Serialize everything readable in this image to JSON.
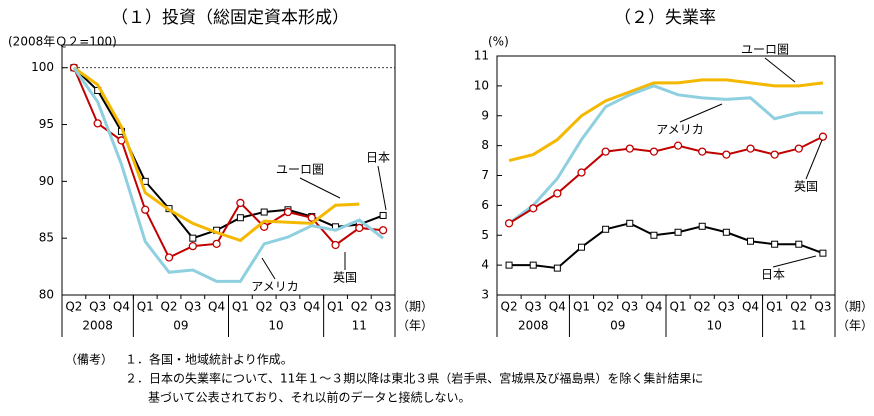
{
  "chart_data": [
    {
      "type": "line",
      "title": "（１）投資（総固定資本形成）",
      "y_label": "(2008年Ｑ２=100)",
      "categories": [
        "Q2",
        "Q3",
        "Q4",
        "Q1",
        "Q2",
        "Q3",
        "Q4",
        "Q1",
        "Q2",
        "Q3",
        "Q4",
        "Q1",
        "Q2",
        "Q3"
      ],
      "groups": [
        "2008",
        "09",
        "10",
        "11"
      ],
      "x_unit_label": "（期）",
      "group_unit_label": "（年）",
      "ylim": [
        80,
        102
      ],
      "yticks": [
        80,
        85,
        90,
        95,
        100
      ],
      "hline": 100,
      "series": [
        {
          "name": "日本",
          "color": "#000000",
          "marker": "square",
          "values": [
            100,
            98,
            94.4,
            90,
            87.6,
            85,
            85.7,
            86.8,
            87.3,
            87.5,
            86.9,
            86,
            86.2,
            87
          ]
        },
        {
          "name": "英国",
          "color": "#c00000",
          "marker": "circle",
          "values": [
            100,
            95.1,
            93.6,
            87.5,
            83.3,
            84.3,
            84.5,
            88.1,
            86,
            87.3,
            86.8,
            84.4,
            85.9,
            85.7
          ]
        },
        {
          "name": "ユーロ圏",
          "color": "#f5b800",
          "marker": null,
          "values": [
            100,
            98.5,
            94.8,
            89,
            87.5,
            86.3,
            85.5,
            84.8,
            86.5,
            86.4,
            86.3,
            87.9,
            88,
            null
          ]
        },
        {
          "name": "アメリカ",
          "color": "#8ecfe0",
          "marker": null,
          "values": [
            100,
            97,
            91.5,
            84.7,
            82,
            82.2,
            81.2,
            81.2,
            84.5,
            85.1,
            86.1,
            85.7,
            86.6,
            85
          ]
        }
      ]
    },
    {
      "type": "line",
      "title": "（２）失業率",
      "y_label": "(%)",
      "categories": [
        "Q2",
        "Q3",
        "Q4",
        "Q1",
        "Q2",
        "Q3",
        "Q4",
        "Q1",
        "Q2",
        "Q3",
        "Q4",
        "Q1",
        "Q2",
        "Q3"
      ],
      "groups": [
        "2008",
        "09",
        "10",
        "11"
      ],
      "x_unit_label": "（期）",
      "group_unit_label": "（年）",
      "ylim": [
        3,
        11
      ],
      "yticks": [
        3,
        4,
        5,
        6,
        7,
        8,
        9,
        10,
        11
      ],
      "series": [
        {
          "name": "ユーロ圏",
          "color": "#f5b800",
          "marker": null,
          "values": [
            7.5,
            7.7,
            8.2,
            9.0,
            9.5,
            9.8,
            10.1,
            10.1,
            10.2,
            10.2,
            10.1,
            10.0,
            10.0,
            10.1
          ]
        },
        {
          "name": "アメリカ",
          "color": "#8ecfe0",
          "marker": null,
          "values": [
            5.4,
            6.0,
            6.9,
            8.2,
            9.3,
            9.7,
            10.0,
            9.7,
            9.6,
            9.55,
            9.6,
            8.9,
            9.1,
            9.1
          ]
        },
        {
          "name": "英国",
          "color": "#c00000",
          "marker": "circle",
          "values": [
            5.4,
            5.9,
            6.4,
            7.1,
            7.8,
            7.9,
            7.8,
            8.0,
            7.8,
            7.7,
            7.9,
            7.7,
            7.9,
            8.3
          ]
        },
        {
          "name": "日本",
          "color": "#000000",
          "marker": "square",
          "values": [
            4.0,
            4.0,
            3.9,
            4.6,
            5.2,
            5.4,
            5.0,
            5.1,
            5.3,
            5.1,
            4.8,
            4.7,
            4.7,
            4.4
          ]
        }
      ]
    }
  ],
  "notes": {
    "label": "（備考）",
    "items": [
      "１．各国・地域統計より作成。",
      "２．日本の失業率について、11年１～３期以降は東北３県（岩手県、宮城県及び福島県）を除く集計結果に",
      "基づいて公表されており、それ以前のデータと接続しない。"
    ]
  }
}
